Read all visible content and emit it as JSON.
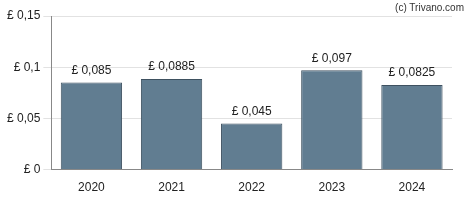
{
  "chart_data": {
    "type": "bar",
    "categories": [
      "2020",
      "2021",
      "2022",
      "2023",
      "2024"
    ],
    "values": [
      0.085,
      0.0885,
      0.045,
      0.097,
      0.0825
    ],
    "value_labels": [
      "£ 0,085",
      "£ 0,0885",
      "£ 0,045",
      "£ 0,097",
      "£ 0,0825"
    ],
    "data_labels": true,
    "color": "#617d91",
    "ylim": [
      0,
      0.15
    ],
    "yticks": [
      {
        "value": 0,
        "label": "£ 0"
      },
      {
        "value": 0.05,
        "label": "£ 0,05"
      },
      {
        "value": 0.1,
        "label": "£ 0,1"
      },
      {
        "value": 0.15,
        "label": "£ 0,15"
      }
    ],
    "grid": true,
    "annotations": [
      "(c) Trivano.com"
    ]
  }
}
